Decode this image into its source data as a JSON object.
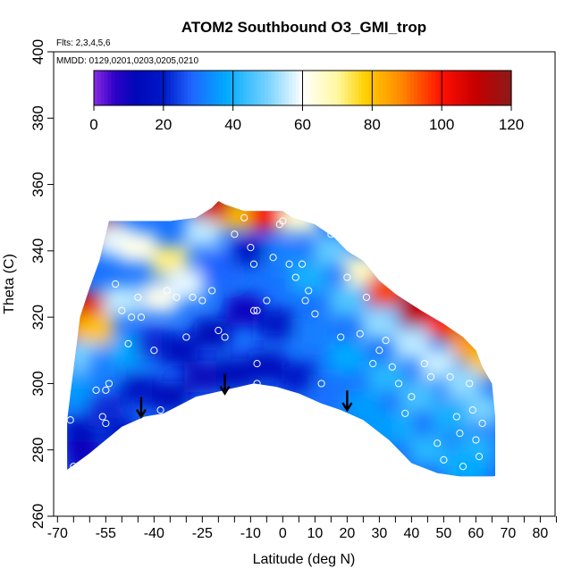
{
  "chart_data": {
    "type": "heatmap",
    "title": "ATOM2 Southbound O3_GMI_trop",
    "annotations": [
      "Flts: 2,3,4,5,6",
      "MMDD: 0129,0201,0203,0205,0210"
    ],
    "xlabel": "Latitude (deg N)",
    "ylabel": "Theta (C)",
    "xlim": [
      -70,
      85
    ],
    "ylim": [
      260,
      400
    ],
    "x_tick_labels": [
      "-70",
      "-55",
      "-40",
      "-25",
      "-10",
      "0",
      "10",
      "20",
      "30",
      "40",
      "50",
      "60",
      "70",
      "80"
    ],
    "x_tick_values": [
      -70,
      -55,
      -40,
      -25,
      -10,
      0,
      10,
      20,
      30,
      40,
      50,
      60,
      70,
      80
    ],
    "y_tick_labels": [
      "260",
      "280",
      "300",
      "320",
      "340",
      "360",
      "380",
      "400"
    ],
    "y_tick_values": [
      260,
      280,
      300,
      320,
      340,
      360,
      380,
      400
    ],
    "colorbar": {
      "min": 0,
      "max": 120,
      "tick_labels": [
        "0",
        "20",
        "40",
        "60",
        "80",
        "100",
        "120"
      ],
      "tick_values": [
        0,
        20,
        40,
        60,
        80,
        100,
        120
      ],
      "color_stops": [
        {
          "value": 0,
          "color": "#8a2be2"
        },
        {
          "value": 6,
          "color": "#2d00c8"
        },
        {
          "value": 12,
          "color": "#0008b8"
        },
        {
          "value": 20,
          "color": "#0018c8"
        },
        {
          "value": 28,
          "color": "#1e64ff"
        },
        {
          "value": 38,
          "color": "#00aaff"
        },
        {
          "value": 50,
          "color": "#78d2ff"
        },
        {
          "value": 60,
          "color": "#ffffff"
        },
        {
          "value": 70,
          "color": "#fff8a0"
        },
        {
          "value": 78,
          "color": "#ffd000"
        },
        {
          "value": 88,
          "color": "#ff8c00"
        },
        {
          "value": 100,
          "color": "#ff1000"
        },
        {
          "value": 110,
          "color": "#c40000"
        },
        {
          "value": 120,
          "color": "#8b1a1a"
        }
      ]
    },
    "curtain_bottom": [
      [
        -67,
        274
      ],
      [
        -60,
        279
      ],
      [
        -50,
        287
      ],
      [
        -43,
        290
      ],
      [
        -37,
        291
      ],
      [
        -27,
        296
      ],
      [
        -18,
        298
      ],
      [
        -9,
        300
      ],
      [
        -2,
        299
      ],
      [
        5,
        297
      ],
      [
        12,
        294
      ],
      [
        18,
        292
      ],
      [
        25,
        289
      ],
      [
        33,
        283
      ],
      [
        40,
        276
      ],
      [
        48,
        273
      ],
      [
        55,
        272
      ],
      [
        63,
        272
      ],
      [
        66,
        272
      ]
    ],
    "curtain_top": [
      [
        -67,
        289
      ],
      [
        -63,
        320
      ],
      [
        -60,
        329
      ],
      [
        -57,
        337
      ],
      [
        -55,
        345
      ],
      [
        -54,
        349
      ],
      [
        -35,
        349
      ],
      [
        -27,
        350
      ],
      [
        -22,
        353
      ],
      [
        -20,
        355
      ],
      [
        -18,
        354
      ],
      [
        -12,
        352
      ],
      [
        0,
        352
      ],
      [
        3,
        350
      ],
      [
        10,
        348
      ],
      [
        16,
        344
      ],
      [
        20,
        340
      ],
      [
        25,
        337
      ],
      [
        30,
        331
      ],
      [
        35,
        327
      ],
      [
        43,
        322
      ],
      [
        50,
        318
      ],
      [
        56,
        314
      ],
      [
        60,
        310
      ],
      [
        62,
        305
      ],
      [
        65,
        300
      ],
      [
        66,
        290
      ],
      [
        66,
        272
      ]
    ],
    "cells": [
      {
        "x": -62,
        "theta": 318,
        "value": 88
      },
      {
        "x": -56,
        "theta": 346,
        "value": 110
      },
      {
        "x": -52,
        "theta": 343,
        "value": 58
      },
      {
        "x": -45,
        "theta": 341,
        "value": 62
      },
      {
        "x": -35,
        "theta": 337,
        "value": 72
      },
      {
        "x": -25,
        "theta": 346,
        "value": 55
      },
      {
        "x": -15,
        "theta": 351,
        "value": 80
      },
      {
        "x": -22,
        "theta": 354,
        "value": 108
      },
      {
        "x": -5,
        "theta": 351,
        "value": 100
      },
      {
        "x": 5,
        "theta": 350,
        "value": 65
      },
      {
        "x": 15,
        "theta": 340,
        "value": 48
      },
      {
        "x": 25,
        "theta": 334,
        "value": 66
      },
      {
        "x": 32,
        "theta": 328,
        "value": 95
      },
      {
        "x": 42,
        "theta": 322,
        "value": 110
      },
      {
        "x": 50,
        "theta": 318,
        "value": 100
      },
      {
        "x": 57,
        "theta": 312,
        "value": 88
      },
      {
        "x": 62,
        "theta": 306,
        "value": 80
      },
      {
        "x": -60,
        "theta": 323,
        "value": 105
      },
      {
        "x": -58,
        "theta": 316,
        "value": 80
      },
      {
        "x": -50,
        "theta": 325,
        "value": 55
      },
      {
        "x": -38,
        "theta": 326,
        "value": 62
      },
      {
        "x": -30,
        "theta": 330,
        "value": 58
      },
      {
        "x": -20,
        "theta": 335,
        "value": 28
      },
      {
        "x": -10,
        "theta": 340,
        "value": 18
      },
      {
        "x": 0,
        "theta": 338,
        "value": 32
      },
      {
        "x": 8,
        "theta": 332,
        "value": 40
      },
      {
        "x": 20,
        "theta": 325,
        "value": 46
      },
      {
        "x": 30,
        "theta": 318,
        "value": 52
      },
      {
        "x": 40,
        "theta": 312,
        "value": 55
      },
      {
        "x": 48,
        "theta": 306,
        "value": 56
      },
      {
        "x": 56,
        "theta": 300,
        "value": 52
      },
      {
        "x": 62,
        "theta": 292,
        "value": 50
      },
      {
        "x": -62,
        "theta": 308,
        "value": 50
      },
      {
        "x": -55,
        "theta": 305,
        "value": 32
      },
      {
        "x": -48,
        "theta": 310,
        "value": 38
      },
      {
        "x": -40,
        "theta": 312,
        "value": 22
      },
      {
        "x": -32,
        "theta": 310,
        "value": 14
      },
      {
        "x": -22,
        "theta": 315,
        "value": 12
      },
      {
        "x": -12,
        "theta": 322,
        "value": 10
      },
      {
        "x": -2,
        "theta": 318,
        "value": 18
      },
      {
        "x": 10,
        "theta": 315,
        "value": 32
      },
      {
        "x": 20,
        "theta": 308,
        "value": 38
      },
      {
        "x": 32,
        "theta": 302,
        "value": 42
      },
      {
        "x": 42,
        "theta": 296,
        "value": 45
      },
      {
        "x": 52,
        "theta": 290,
        "value": 40
      },
      {
        "x": 60,
        "theta": 280,
        "value": 42
      },
      {
        "x": -65,
        "theta": 298,
        "value": 36
      },
      {
        "x": -63,
        "theta": 285,
        "value": 14
      },
      {
        "x": -55,
        "theta": 292,
        "value": 22
      },
      {
        "x": -45,
        "theta": 298,
        "value": 18
      },
      {
        "x": -35,
        "theta": 296,
        "value": 12
      },
      {
        "x": -25,
        "theta": 302,
        "value": 11
      },
      {
        "x": -15,
        "theta": 303,
        "value": 12
      },
      {
        "x": -5,
        "theta": 305,
        "value": 14
      },
      {
        "x": 5,
        "theta": 302,
        "value": 20
      },
      {
        "x": 15,
        "theta": 298,
        "value": 30
      },
      {
        "x": 25,
        "theta": 293,
        "value": 36
      },
      {
        "x": 35,
        "theta": 287,
        "value": 40
      },
      {
        "x": 45,
        "theta": 280,
        "value": 42
      },
      {
        "x": 55,
        "theta": 276,
        "value": 40
      },
      {
        "x": -62,
        "theta": 278,
        "value": 10
      },
      {
        "x": -50,
        "theta": 285,
        "value": 18
      },
      {
        "x": 30,
        "theta": 286,
        "value": 36
      },
      {
        "x": 58,
        "theta": 274,
        "value": 38
      }
    ],
    "sample_points": [
      {
        "x": -66,
        "theta": 289
      },
      {
        "x": -65,
        "theta": 275
      },
      {
        "x": -58,
        "theta": 298
      },
      {
        "x": -55,
        "theta": 298
      },
      {
        "x": -56,
        "theta": 290
      },
      {
        "x": -55,
        "theta": 288
      },
      {
        "x": -54,
        "theta": 300
      },
      {
        "x": -52,
        "theta": 330
      },
      {
        "x": -50,
        "theta": 322
      },
      {
        "x": -48,
        "theta": 312
      },
      {
        "x": -47,
        "theta": 320
      },
      {
        "x": -45,
        "theta": 326
      },
      {
        "x": -44,
        "theta": 320
      },
      {
        "x": -40,
        "theta": 310
      },
      {
        "x": -38,
        "theta": 292
      },
      {
        "x": -36,
        "theta": 328
      },
      {
        "x": -33,
        "theta": 326
      },
      {
        "x": -30,
        "theta": 314
      },
      {
        "x": -28,
        "theta": 326
      },
      {
        "x": -25,
        "theta": 325
      },
      {
        "x": -22,
        "theta": 328
      },
      {
        "x": -20,
        "theta": 316
      },
      {
        "x": -18,
        "theta": 314
      },
      {
        "x": -15,
        "theta": 345
      },
      {
        "x": -14,
        "theta": 295
      },
      {
        "x": -12,
        "theta": 350
      },
      {
        "x": -10,
        "theta": 341
      },
      {
        "x": -9,
        "theta": 336
      },
      {
        "x": -9,
        "theta": 322
      },
      {
        "x": -8,
        "theta": 322
      },
      {
        "x": -8,
        "theta": 306
      },
      {
        "x": -8,
        "theta": 300
      },
      {
        "x": -5,
        "theta": 325
      },
      {
        "x": -3,
        "theta": 338
      },
      {
        "x": -1,
        "theta": 348
      },
      {
        "x": 0,
        "theta": 349
      },
      {
        "x": 2,
        "theta": 336
      },
      {
        "x": 4,
        "theta": 332
      },
      {
        "x": 6,
        "theta": 336
      },
      {
        "x": 7,
        "theta": 325
      },
      {
        "x": 8,
        "theta": 328
      },
      {
        "x": 10,
        "theta": 321
      },
      {
        "x": 12,
        "theta": 300
      },
      {
        "x": 15,
        "theta": 345
      },
      {
        "x": 18,
        "theta": 314
      },
      {
        "x": 20,
        "theta": 332
      },
      {
        "x": 22,
        "theta": 340
      },
      {
        "x": 24,
        "theta": 315
      },
      {
        "x": 26,
        "theta": 326
      },
      {
        "x": 28,
        "theta": 306
      },
      {
        "x": 30,
        "theta": 310
      },
      {
        "x": 32,
        "theta": 313
      },
      {
        "x": 34,
        "theta": 305
      },
      {
        "x": 36,
        "theta": 300
      },
      {
        "x": 38,
        "theta": 291
      },
      {
        "x": 40,
        "theta": 296
      },
      {
        "x": 44,
        "theta": 306
      },
      {
        "x": 46,
        "theta": 302
      },
      {
        "x": 48,
        "theta": 282
      },
      {
        "x": 50,
        "theta": 277
      },
      {
        "x": 52,
        "theta": 302
      },
      {
        "x": 54,
        "theta": 290
      },
      {
        "x": 55,
        "theta": 285
      },
      {
        "x": 56,
        "theta": 275
      },
      {
        "x": 58,
        "theta": 300
      },
      {
        "x": 59,
        "theta": 292
      },
      {
        "x": 60,
        "theta": 283
      },
      {
        "x": 61,
        "theta": 278
      },
      {
        "x": 62,
        "theta": 288
      },
      {
        "x": 66,
        "theta": 271
      }
    ],
    "arrows": [
      {
        "x": -44,
        "theta": 290
      },
      {
        "x": -18,
        "theta": 297
      },
      {
        "x": 20,
        "theta": 292
      }
    ]
  }
}
